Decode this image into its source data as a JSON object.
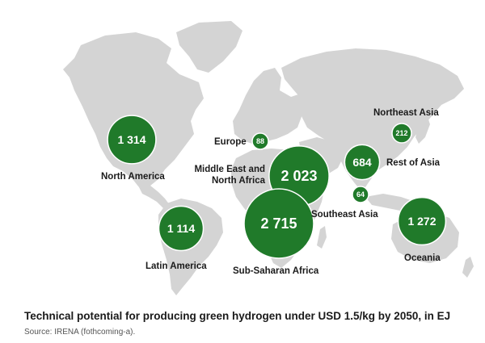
{
  "caption": "Technical potential for producing green hydrogen under USD 1.5/kg by 2050, in EJ",
  "source": "Source: IRENA (fothcoming-a).",
  "colors": {
    "bubble": "#207a2a",
    "land": "#d4d4d4",
    "text": "#1a1a1a"
  },
  "regions": [
    {
      "id": "north-america",
      "name": [
        "North America"
      ],
      "value": 1314,
      "display": "1 314"
    },
    {
      "id": "latin-america",
      "name": [
        "Latin America"
      ],
      "value": 1114,
      "display": "1 114"
    },
    {
      "id": "europe",
      "name": [
        "Europe"
      ],
      "value": 88,
      "display": "88"
    },
    {
      "id": "mena",
      "name": [
        "Middle East and",
        "North Africa"
      ],
      "value": 2023,
      "display": "2 023"
    },
    {
      "id": "sub-saharan-africa",
      "name": [
        "Sub-Saharan Africa"
      ],
      "value": 2715,
      "display": "2 715"
    },
    {
      "id": "rest-of-asia",
      "name": [
        "Rest of Asia"
      ],
      "value": 684,
      "display": "684"
    },
    {
      "id": "northeast-asia",
      "name": [
        "Northeast Asia"
      ],
      "value": 212,
      "display": "212"
    },
    {
      "id": "southeast-asia",
      "name": [
        "Southeast Asia"
      ],
      "value": 64,
      "display": "64"
    },
    {
      "id": "oceania",
      "name": [
        "Oceania"
      ],
      "value": 1272,
      "display": "1 272"
    }
  ]
}
